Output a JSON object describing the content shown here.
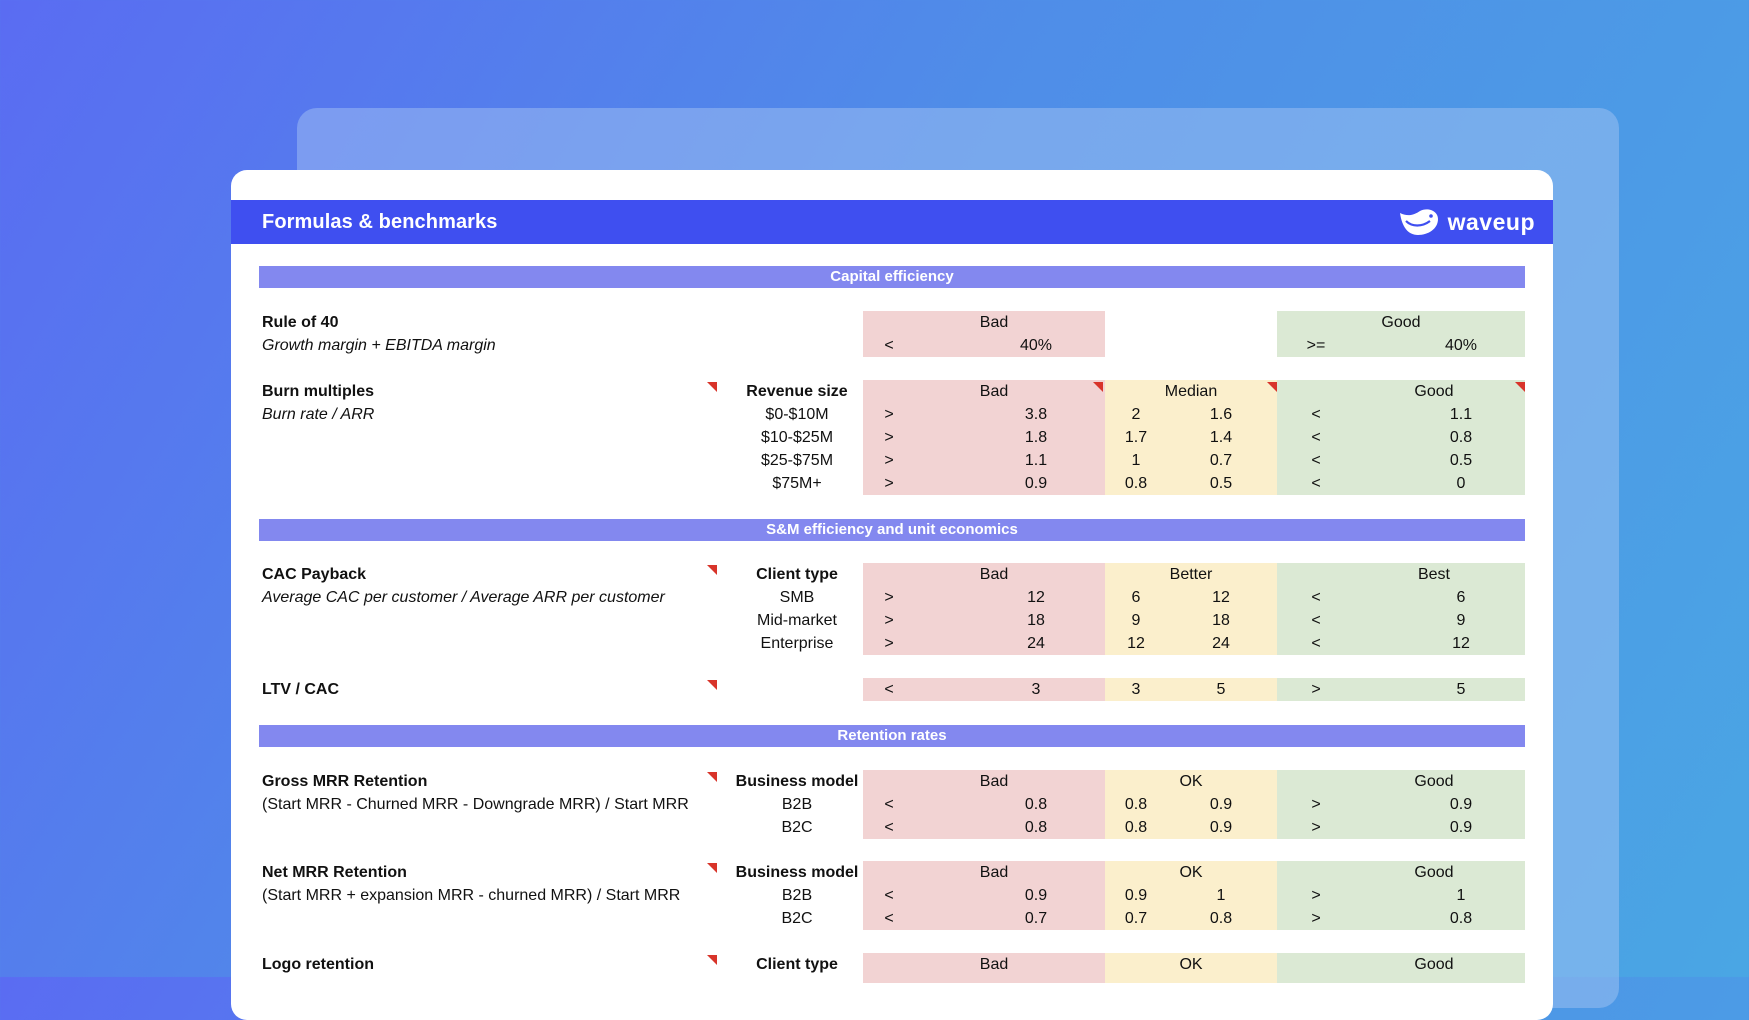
{
  "header": {
    "title": "Formulas & benchmarks",
    "brand": "waveup",
    "brand_color": "#3f4ff0"
  },
  "sections": {
    "capital": "Capital efficiency",
    "sm": "S&M efficiency and unit economics",
    "retention": "Retention rates"
  },
  "rule40": {
    "name": "Rule of 40",
    "formula": "Growth margin + EBITDA margin",
    "bad_label": "Bad",
    "bad_op": "<",
    "bad_val": "40%",
    "good_label": "Good",
    "good_op": ">=",
    "good_val": "40%"
  },
  "burn": {
    "name": "Burn multiples",
    "formula": "Burn rate / ARR",
    "dim": "Revenue size",
    "bad_label": "Bad",
    "mid_label": "Median",
    "good_label": "Good",
    "rows": [
      {
        "seg": "$0-$10M",
        "bad_op": ">",
        "bad": "3.8",
        "mid_lo": "2",
        "mid_hi": "1.6",
        "good_op": "<",
        "good": "1.1"
      },
      {
        "seg": "$10-$25M",
        "bad_op": ">",
        "bad": "1.8",
        "mid_lo": "1.7",
        "mid_hi": "1.4",
        "good_op": "<",
        "good": "0.8"
      },
      {
        "seg": "$25-$75M",
        "bad_op": ">",
        "bad": "1.1",
        "mid_lo": "1",
        "mid_hi": "0.7",
        "good_op": "<",
        "good": "0.5"
      },
      {
        "seg": "$75M+",
        "bad_op": ">",
        "bad": "0.9",
        "mid_lo": "0.8",
        "mid_hi": "0.5",
        "good_op": "<",
        "good": "0"
      }
    ]
  },
  "cac": {
    "name": "CAC Payback",
    "formula": "Average CAC per customer / Average ARR per customer",
    "dim": "Client type",
    "bad_label": "Bad",
    "mid_label": "Better",
    "good_label": "Best",
    "rows": [
      {
        "seg": "SMB",
        "bad_op": ">",
        "bad": "12",
        "mid_lo": "6",
        "mid_hi": "12",
        "good_op": "<",
        "good": "6"
      },
      {
        "seg": "Mid-market",
        "bad_op": ">",
        "bad": "18",
        "mid_lo": "9",
        "mid_hi": "18",
        "good_op": "<",
        "good": "9"
      },
      {
        "seg": "Enterprise",
        "bad_op": ">",
        "bad": "24",
        "mid_lo": "12",
        "mid_hi": "24",
        "good_op": "<",
        "good": "12"
      }
    ]
  },
  "ltv": {
    "name": "LTV / CAC",
    "row": {
      "bad_op": "<",
      "bad": "3",
      "mid_lo": "3",
      "mid_hi": "5",
      "good_op": ">",
      "good": "5"
    }
  },
  "gross": {
    "name": "Gross MRR Retention",
    "formula": "(Start MRR - Churned MRR - Downgrade MRR) / Start MRR",
    "dim": "Business model",
    "bad_label": "Bad",
    "mid_label": "OK",
    "good_label": "Good",
    "rows": [
      {
        "seg": "B2B",
        "bad_op": "<",
        "bad": "0.8",
        "mid_lo": "0.8",
        "mid_hi": "0.9",
        "good_op": ">",
        "good": "0.9"
      },
      {
        "seg": "B2C",
        "bad_op": "<",
        "bad": "0.8",
        "mid_lo": "0.8",
        "mid_hi": "0.9",
        "good_op": ">",
        "good": "0.9"
      }
    ]
  },
  "net": {
    "name": "Net MRR Retention",
    "formula": "(Start MRR + expansion MRR - churned MRR) / Start MRR",
    "dim": "Business model",
    "bad_label": "Bad",
    "mid_label": "OK",
    "good_label": "Good",
    "rows": [
      {
        "seg": "B2B",
        "bad_op": "<",
        "bad": "0.9",
        "mid_lo": "0.9",
        "mid_hi": "1",
        "good_op": ">",
        "good": "1"
      },
      {
        "seg": "B2C",
        "bad_op": "<",
        "bad": "0.7",
        "mid_lo": "0.7",
        "mid_hi": "0.8",
        "good_op": ">",
        "good": "0.8"
      }
    ]
  },
  "logo": {
    "name": "Logo retention",
    "dim": "Client type",
    "bad_label": "Bad",
    "mid_label": "OK",
    "good_label": "Good"
  }
}
